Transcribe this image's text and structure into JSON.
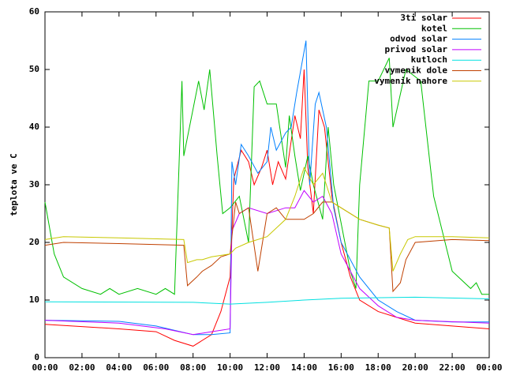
{
  "chart_data": {
    "type": "line",
    "ylabel": "teplota ve C",
    "xlim": [
      0,
      24
    ],
    "xticks": [
      {
        "value": 0,
        "label": "00:00"
      },
      {
        "value": 2,
        "label": "02:00"
      },
      {
        "value": 4,
        "label": "04:00"
      },
      {
        "value": 6,
        "label": "06:00"
      },
      {
        "value": 8,
        "label": "08:00"
      },
      {
        "value": 10,
        "label": "10:00"
      },
      {
        "value": 12,
        "label": "12:00"
      },
      {
        "value": 14,
        "label": "14:00"
      },
      {
        "value": 16,
        "label": "16:00"
      },
      {
        "value": 18,
        "label": "18:00"
      },
      {
        "value": 20,
        "label": "20:00"
      },
      {
        "value": 22,
        "label": "22:00"
      },
      {
        "value": 24,
        "label": "00:00"
      }
    ],
    "ylim": [
      0,
      60
    ],
    "yticks": [
      0,
      10,
      20,
      30,
      40,
      50,
      60
    ],
    "legend": "top-right",
    "series": [
      {
        "name": "3ti solar",
        "color": "#ff0000",
        "x": [
          0,
          4,
          6,
          7,
          8,
          9,
          9.5,
          10,
          10.2,
          10.6,
          11,
          11.3,
          11.7,
          12,
          12.3,
          12.6,
          13,
          13.5,
          13.8,
          14,
          14.2,
          14.5,
          14.8,
          15.1,
          15.5,
          16,
          16.5,
          17,
          18,
          19,
          20,
          22,
          24
        ],
        "values": [
          5.8,
          5,
          4.5,
          3,
          2,
          4,
          8,
          14,
          31,
          36,
          34,
          30,
          33,
          36,
          30,
          34,
          31,
          42,
          38,
          50,
          33,
          25,
          43,
          40,
          28,
          20,
          14,
          10,
          8,
          7,
          6,
          5.5,
          5
        ]
      },
      {
        "name": "kotel",
        "color": "#00c000",
        "x": [
          0,
          0.5,
          1,
          2,
          3,
          3.5,
          4,
          5,
          6,
          6.5,
          7,
          7.4,
          7.5,
          8.3,
          8.6,
          8.9,
          9.3,
          9.6,
          10,
          10.5,
          11,
          11.3,
          11.6,
          12,
          12.5,
          13,
          13.2,
          13.5,
          13.8,
          14.2,
          14.5,
          15,
          15.3,
          15.6,
          16.5,
          16.8,
          17,
          17.5,
          18,
          18.6,
          18.8,
          19.5,
          20.3,
          21,
          22,
          23,
          23.3,
          23.6,
          24
        ],
        "values": [
          27,
          18,
          14,
          12,
          11,
          12,
          11,
          12,
          11,
          12,
          11,
          48,
          35,
          48,
          43,
          50,
          35,
          25,
          26,
          28,
          20,
          47,
          48,
          44,
          44,
          33,
          42,
          35,
          29,
          35,
          30,
          24,
          40,
          30,
          15,
          12,
          30,
          48,
          48,
          52,
          40,
          50,
          48,
          28,
          15,
          12,
          13,
          11,
          11
        ]
      },
      {
        "name": "odvod solar",
        "color": "#0080ff",
        "x": [
          0,
          4,
          6,
          8,
          9,
          10,
          10.1,
          10.3,
          10.6,
          11,
          11.5,
          12,
          12.2,
          12.5,
          13,
          13.3,
          13.6,
          14.1,
          14.3,
          14.6,
          14.8,
          15.2,
          15.6,
          16,
          17,
          18,
          19,
          20,
          22,
          24
        ],
        "values": [
          6.5,
          6.3,
          5.5,
          4,
          4,
          4.3,
          34,
          30,
          37,
          35,
          32,
          34,
          40,
          36,
          39,
          40,
          46,
          55,
          30,
          44,
          46,
          40,
          26,
          20,
          14,
          10,
          8,
          6.5,
          6.2,
          6.2
        ]
      },
      {
        "name": "privod solar",
        "color": "#c000ff",
        "x": [
          0,
          4,
          6.5,
          8,
          9,
          10,
          10.1,
          10.5,
          11,
          12,
          13,
          13.5,
          14,
          14.5,
          15,
          15.5,
          16,
          17,
          18,
          19,
          20,
          24
        ],
        "values": [
          6.5,
          6,
          5,
          4,
          4.5,
          5,
          22,
          25,
          26,
          25,
          26,
          26,
          29,
          27,
          28,
          25,
          18,
          12,
          9,
          7,
          6.5,
          6
        ]
      },
      {
        "name": "kutloch",
        "color": "#00e0e0",
        "x": [
          0,
          8,
          10,
          12,
          14,
          16,
          20,
          24
        ],
        "values": [
          9.7,
          9.6,
          9.3,
          9.6,
          10,
          10.3,
          10.5,
          10.2
        ]
      },
      {
        "name": "vymenik dole",
        "color": "#c04000",
        "x": [
          0,
          1,
          4,
          7.5,
          7.7,
          8.2,
          8.5,
          9,
          9.5,
          10,
          10.3,
          10.5,
          11,
          11.5,
          12,
          12.5,
          13,
          14,
          14.5,
          15,
          15.5,
          16,
          17,
          18,
          18.6,
          18.8,
          19.2,
          19.5,
          20,
          22,
          24
        ],
        "values": [
          19.5,
          20,
          19.8,
          19.5,
          12.5,
          14,
          15,
          16,
          17.5,
          18,
          27,
          25,
          26,
          15,
          25,
          26,
          24,
          24,
          25,
          27,
          27,
          26,
          24,
          23,
          22.5,
          11.5,
          13,
          17,
          20,
          20.5,
          20.3
        ]
      },
      {
        "name": "vymenik nahore",
        "color": "#c8c800",
        "x": [
          0,
          1,
          4,
          7.5,
          7.7,
          8.2,
          8.5,
          9,
          10,
          10.3,
          11,
          12,
          13,
          13.5,
          14,
          14.5,
          15,
          15.5,
          16,
          17,
          18,
          18.6,
          18.8,
          19.2,
          19.6,
          20,
          22,
          24
        ],
        "values": [
          20.5,
          21,
          20.8,
          20.5,
          16.5,
          17,
          17,
          17.5,
          18,
          19,
          20,
          21,
          24,
          28,
          33,
          30,
          32,
          27,
          26,
          24,
          23,
          22.5,
          15,
          18,
          20.5,
          21,
          21,
          20.8
        ]
      }
    ]
  }
}
